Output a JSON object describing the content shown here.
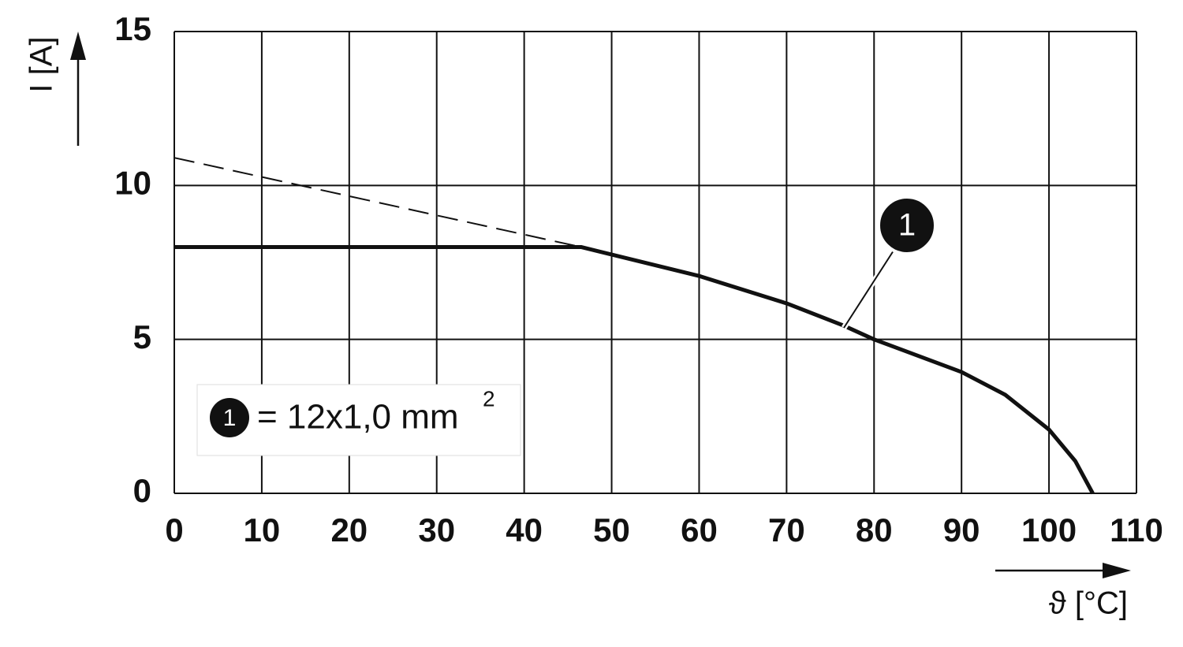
{
  "chart_data": {
    "type": "line",
    "x_label": "ϑ [°C]",
    "y_label": "I [A]",
    "xlim": [
      0,
      110
    ],
    "xticks": [
      0,
      10,
      20,
      30,
      40,
      50,
      60,
      70,
      80,
      90,
      100,
      110
    ],
    "ylim": [
      0,
      15
    ],
    "yticks": [
      0,
      5,
      10,
      15
    ],
    "grid": true,
    "legend_text": "= 12x1,0 mm",
    "legend_superscript": "2",
    "series": [
      {
        "name": "1",
        "color": "#111111",
        "dashed": false,
        "x": [
          0,
          46.5,
          60,
          70,
          76.5,
          80,
          90,
          95,
          100,
          103,
          105
        ],
        "values": [
          8,
          8,
          7.06,
          6.17,
          5.45,
          5.0,
          3.94,
          3.2,
          2.07,
          1.05,
          0
        ]
      },
      {
        "color": "#111111",
        "dashed": true,
        "x": [
          0,
          46.5
        ],
        "values": [
          10.9,
          8
        ]
      }
    ]
  }
}
